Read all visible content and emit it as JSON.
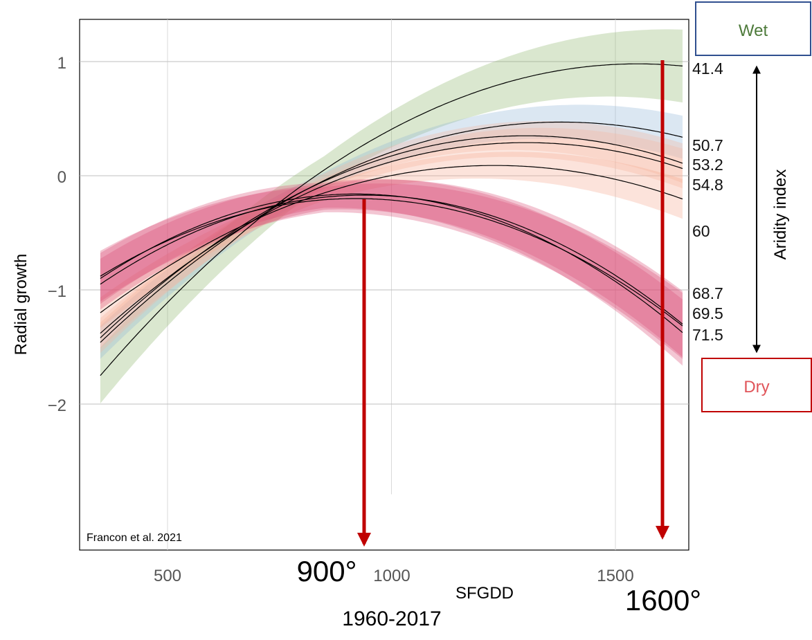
{
  "chart_data": {
    "type": "line",
    "xlabel": "SFGDD",
    "ylabel": "Radial growth",
    "xlim": [
      320,
      1650
    ],
    "ylim": [
      -3.2,
      1.4
    ],
    "x_ticks": [
      "500",
      "1000",
      "1500"
    ],
    "y_ticks": [
      "1",
      "0",
      "−1",
      "−2"
    ],
    "grid": true,
    "x_grid": [
      500,
      1000,
      1500
    ],
    "y_grid": [
      1,
      0,
      -1,
      -2
    ],
    "credit": "Francon et al. 2021",
    "legend_title": "Aridity index",
    "series": [
      {
        "name": "41.4",
        "color": "#8db46a",
        "x_peak": 1550,
        "y_peak": 0.98,
        "x_start": 350,
        "y_start": -1.75,
        "y_end": 0.94,
        "band": 0.22
      },
      {
        "name": "50.7",
        "color": "#8fb4d8",
        "x_peak": 1380,
        "y_peak": 0.47,
        "x_start": 350,
        "y_start": -1.46,
        "y_end": 0.25,
        "band": 0.13
      },
      {
        "name": "53.2",
        "color": "#f5b3a0",
        "x_peak": 1300,
        "y_peak": 0.35,
        "x_start": 350,
        "y_start": -1.42,
        "y_end": 0.08,
        "band": 0.12
      },
      {
        "name": "54.8",
        "color": "#f5b3a0",
        "x_peak": 1300,
        "y_peak": 0.29,
        "x_start": 350,
        "y_start": -1.38,
        "y_end": -0.04,
        "band": 0.12
      },
      {
        "name": "60",
        "color": "#f5a890",
        "x_peak": 1230,
        "y_peak": 0.09,
        "x_start": 350,
        "y_start": -1.2,
        "y_end": -0.44,
        "band": 0.12
      },
      {
        "name": "68.7",
        "color": "#d94f75",
        "x_peak": 920,
        "y_peak": -0.16,
        "x_start": 350,
        "y_start": -0.9,
        "y_end": -1.02,
        "band": 0.2
      },
      {
        "name": "69.5",
        "color": "#d94f75",
        "x_peak": 940,
        "y_peak": -0.17,
        "x_start": 350,
        "y_start": -0.95,
        "y_end": -1.2,
        "band": 0.2
      },
      {
        "name": "71.5",
        "color": "#d94f75",
        "x_peak": 920,
        "y_peak": -0.2,
        "x_start": 350,
        "y_start": -0.88,
        "y_end": -1.34,
        "band": 0.2
      }
    ],
    "annotations": {
      "arrow_left": {
        "x": 900,
        "label": "900°",
        "period": "1960-2017"
      },
      "arrow_right": {
        "x": 1600,
        "label": "1600°"
      }
    }
  },
  "aridity": {
    "wet_label": "Wet",
    "dry_label": "Dry",
    "axis_label": "Aridity index"
  },
  "colors": {
    "arrow": "#c00000",
    "wet_text": "#4d7a3a",
    "wet_border": "#2f4f8f",
    "dry_text": "#e0555a",
    "dry_border": "#c00000"
  }
}
